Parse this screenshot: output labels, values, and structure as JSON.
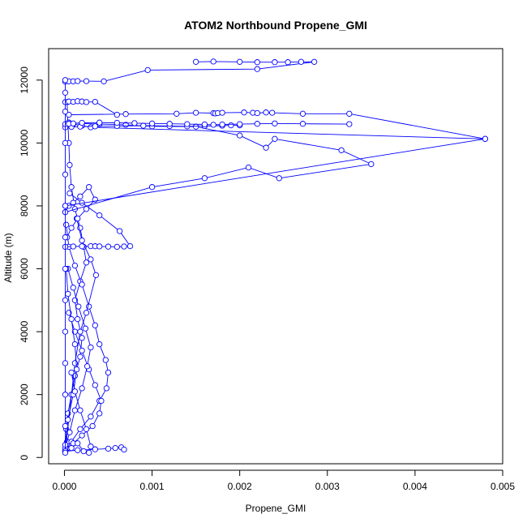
{
  "chart_data": {
    "type": "line",
    "title": "ATOM2 Northbound Propene_GMI",
    "xlabel": "Propene_GMI",
    "ylabel": "Altitude (m)",
    "xlim": [
      -0.00018,
      0.005
    ],
    "ylim": [
      -200,
      13000
    ],
    "xticks": [
      0,
      0.001,
      0.002,
      0.003,
      0.004,
      0.005
    ],
    "xtick_labels": [
      "0.000",
      "0.001",
      "0.002",
      "0.003",
      "0.004",
      "0.005"
    ],
    "yticks": [
      0,
      2000,
      4000,
      6000,
      8000,
      10000,
      12000
    ],
    "ytick_labels": [
      "0",
      "2000",
      "4000",
      "6000",
      "8000",
      "10000",
      "12000"
    ],
    "grid": false,
    "marker": "open-circle",
    "color": "#0000ff",
    "series": [
      {
        "x": [
          1e-05,
          3e-05,
          2e-05,
          4e-05,
          8e-05,
          0.00012,
          0.00018,
          0.0002,
          0.00015,
          0.00012,
          0.00018,
          0.00025,
          0.00022,
          0.00018,
          0.00012,
          8e-05,
          6e-05,
          5e-05,
          4e-05,
          3e-05
        ],
        "y": [
          180,
          500,
          900,
          1400,
          2000,
          2600,
          3200,
          3800,
          4400,
          5000,
          5600,
          6200,
          6700,
          7300,
          7900,
          8600,
          9300,
          10000,
          10600,
          11300
        ]
      },
      {
        "x": [
          1e-05,
          8e-05,
          0.00018,
          0.0003,
          0.0004,
          0.00048,
          0.0005,
          0.00047,
          0.0004,
          0.00035,
          0.00028,
          0.0002,
          0.00012,
          5e-05,
          2e-05
        ],
        "y": [
          220,
          500,
          900,
          1300,
          1800,
          2200,
          2700,
          3100,
          3600,
          4200,
          4800,
          5500,
          6100,
          6700,
          7400
        ]
      },
      {
        "x": [
          1e-05,
          0.00015,
          0.00035,
          0.0005,
          0.00058,
          0.00065,
          0.00068
        ],
        "y": [
          200,
          230,
          260,
          280,
          300,
          320,
          250
        ]
      },
      {
        "x": [
          1e-05,
          0.0001,
          0.0002,
          0.00032,
          0.0004,
          0.00042,
          0.00035,
          0.00028,
          0.0002,
          0.00012,
          5e-05
        ],
        "y": [
          250,
          450,
          700,
          1000,
          1400,
          1800,
          2300,
          2800,
          3400,
          4000,
          4600
        ]
      },
      {
        "x": [
          1e-05,
          6e-05,
          0.00012,
          0.0002,
          0.00026,
          0.0003,
          0.00024,
          0.00016,
          0.0001,
          4e-05
        ],
        "y": [
          300,
          800,
          1500,
          2200,
          2900,
          3500,
          4100,
          4800,
          5400,
          6000
        ]
      },
      {
        "x": [
          1e-05,
          0.00012,
          0.00018,
          0.00025,
          0.00036,
          0.0003,
          0.0002,
          0.00014
        ],
        "y": [
          180,
          3000,
          4000,
          4600,
          5800,
          6300,
          6900,
          7600
        ]
      },
      {
        "x": [
          1e-05,
          4e-05,
          0.0001,
          0.00014,
          0.00012,
          8e-05,
          4e-05,
          2e-05
        ],
        "y": [
          400,
          1200,
          2000,
          2800,
          3600,
          4400,
          5200,
          6000
        ]
      },
      {
        "x": [
          1e-05,
          0.0001,
          0.0002,
          0.0003,
          0.00035,
          0.0004,
          0.0005,
          0.0006,
          0.00068,
          0.00075,
          0.00063,
          0.0004,
          0.0002,
          6e-05
        ],
        "y": [
          6700,
          6710,
          6715,
          6720,
          6718,
          6712,
          6705,
          6700,
          6710,
          6720,
          7200,
          7700,
          8100,
          8400
        ]
      },
      {
        "x": [
          1e-05,
          5e-05,
          0.0001,
          0.00018,
          0.00028,
          0.00035,
          0.00025,
          0.00015,
          8e-05,
          3e-05
        ],
        "y": [
          7800,
          8000,
          8100,
          8300,
          8600,
          8200,
          7900,
          7600,
          7300,
          7000
        ]
      },
      {
        "x": [
          1e-05,
          0.001,
          0.0016,
          0.0021,
          0.00245,
          0.0035,
          0.00316,
          0.0024,
          0.0023,
          0.002,
          0.0015,
          0.001,
          0.0007,
          0.0004,
          0.0002,
          5e-05
        ],
        "y": [
          7800,
          8600,
          8880,
          9220,
          8880,
          9330,
          9770,
          10130,
          9850,
          10240,
          10520,
          10530,
          10580,
          10600,
          10620,
          10650
        ]
      },
      {
        "x": [
          1e-05,
          0.0048,
          0.0003,
          0.0002,
          0.0001,
          5e-05
        ],
        "y": [
          8000,
          10130,
          10500,
          10550,
          10600,
          10650
        ]
      },
      {
        "x": [
          1e-05,
          8e-05,
          0.00018,
          0.00035,
          0.0006,
          0.0009,
          0.0012,
          0.0014,
          0.0016,
          0.0018,
          0.0019,
          0.002
        ],
        "y": [
          10500,
          10510,
          10520,
          10530,
          10540,
          10550,
          10540,
          10530,
          10540,
          10550,
          10560,
          10560
        ]
      },
      {
        "x": [
          1e-05,
          5e-05,
          0.0001,
          0.0002,
          0.0004,
          0.0006,
          0.0008,
          0.001,
          0.0012,
          0.0014,
          0.0016,
          0.0017,
          0.0018,
          0.002,
          0.0022,
          0.0024,
          0.00272,
          0.00325
        ],
        "y": [
          10600,
          10610,
          10620,
          10640,
          10650,
          10640,
          10630,
          10620,
          10610,
          10600,
          10590,
          10580,
          10590,
          10600,
          10610,
          10620,
          10610,
          10600
        ]
      },
      {
        "x": [
          5e-05,
          0.0007,
          0.00128,
          0.0015,
          0.0017,
          0.00172,
          0.00175,
          0.0018,
          0.00205,
          0.00215,
          0.0022,
          0.0023,
          0.00237,
          0.00272,
          0.00325,
          0.0048
        ],
        "y": [
          10900,
          10920,
          10930,
          10960,
          10950,
          10940,
          10950,
          10960,
          10970,
          10960,
          10950,
          10970,
          10960,
          10930,
          10930,
          10130
        ]
      },
      {
        "x": [
          1e-05,
          5e-05,
          0.0001,
          0.00015,
          0.0002,
          0.00025,
          0.00035,
          0.0006
        ],
        "y": [
          11300,
          11320,
          11310,
          11330,
          11320,
          11300,
          11310,
          10900
        ]
      },
      {
        "x": [
          1e-05,
          5e-05,
          0.0001,
          0.00015,
          0.00025,
          0.00045,
          0.00095,
          0.0022,
          0.00285,
          0.0027,
          0.00255,
          0.0024,
          0.0022,
          0.002,
          0.0017,
          0.0015
        ],
        "y": [
          11950,
          11960,
          11960,
          11970,
          11965,
          11960,
          12320,
          12350,
          12580,
          12580,
          12570,
          12570,
          12570,
          12580,
          12590,
          12580
        ]
      },
      {
        "x": [
          1e-05,
          1e-05,
          1e-05,
          1e-05,
          1e-05,
          1e-05,
          1e-05,
          1e-05,
          1e-05,
          1e-05,
          1e-05,
          1e-05,
          1e-05,
          1e-05
        ],
        "y": [
          200,
          1000,
          2000,
          3000,
          4000,
          5000,
          6000,
          7000,
          8000,
          9000,
          10000,
          11000,
          11600,
          12000
        ]
      },
      {
        "x": [
          1e-05,
          8e-05,
          0.00015,
          0.00022,
          0.00028,
          0.0003,
          0.00025,
          0.00018,
          0.00012,
          8e-05
        ],
        "y": [
          150,
          300,
          450,
          200,
          150,
          350,
          900,
          1500,
          2100,
          2700
        ]
      }
    ]
  }
}
